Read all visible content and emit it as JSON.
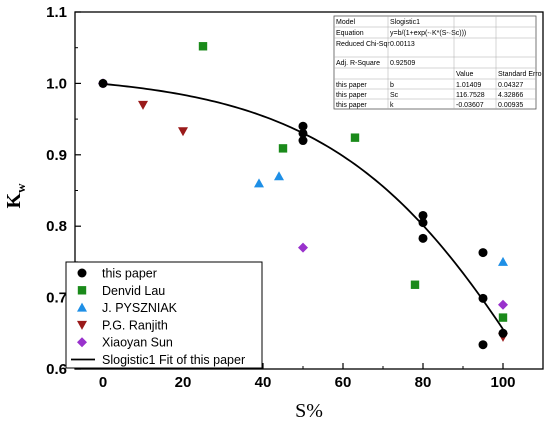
{
  "chart_data": {
    "type": "scatter",
    "xlabel": "S%",
    "ylabel_main": "K",
    "ylabel_sub": "w",
    "xlim": [
      -7,
      110
    ],
    "ylim": [
      0.6,
      1.1
    ],
    "x_ticks": [
      "0",
      "20",
      "40",
      "60",
      "80",
      "100"
    ],
    "y_ticks": [
      "0.6",
      "0.7",
      "0.8",
      "0.9",
      "1.0",
      "1.1"
    ],
    "series": [
      {
        "name": "this paper",
        "marker": "circle",
        "color": "#000000",
        "points": [
          [
            0,
            1.0
          ],
          [
            50,
            0.94
          ],
          [
            50,
            0.93
          ],
          [
            50,
            0.92
          ],
          [
            80,
            0.815
          ],
          [
            80,
            0.805
          ],
          [
            80,
            0.783
          ],
          [
            95,
            0.763
          ],
          [
            95,
            0.699
          ],
          [
            95,
            0.634
          ],
          [
            100,
            0.65
          ]
        ]
      },
      {
        "name": "Denvid Lau",
        "marker": "square",
        "color": "#1a8a1a",
        "points": [
          [
            25,
            1.052
          ],
          [
            45,
            0.909
          ],
          [
            63,
            0.924
          ],
          [
            78,
            0.718
          ],
          [
            100,
            0.672
          ]
        ]
      },
      {
        "name": "J. PYSZNIAK",
        "marker": "triangle-up",
        "color": "#1e8fe6",
        "points": [
          [
            39,
            0.86
          ],
          [
            44,
            0.87
          ],
          [
            100,
            0.75
          ]
        ]
      },
      {
        "name": "P.G. Ranjith",
        "marker": "triangle-down",
        "color": "#9a1a1a",
        "points": [
          [
            10,
            0.97
          ],
          [
            20,
            0.933
          ],
          [
            100,
            0.645
          ]
        ]
      },
      {
        "name": "Xiaoyan Sun",
        "marker": "diamond",
        "color": "#9932cc",
        "points": [
          [
            0,
            1.0
          ],
          [
            50,
            0.77
          ],
          [
            100,
            0.69
          ]
        ]
      }
    ],
    "fit": {
      "name": "Slogistic1 Fit of this paper",
      "color": "#000000",
      "b": 1.01409,
      "Sc": 116.7528,
      "k": -0.03607,
      "x_range": [
        0,
        100
      ]
    },
    "legend_position": "bottom-left"
  },
  "stats_table": {
    "rows": [
      [
        "Model",
        "Slogistic1",
        "",
        ""
      ],
      [
        "Equation",
        "y=b/(1+exp(-·K*(S-·Sc)))",
        "",
        ""
      ],
      [
        "Reduced Chi-Sqr",
        "0.00113",
        "",
        ""
      ],
      [
        "Adj. R-Square",
        "0.92509",
        "",
        ""
      ],
      [
        "",
        "",
        "Value",
        "Standard Erro"
      ],
      [
        "this paper",
        "b",
        "1.01409",
        "0.04327"
      ],
      [
        "this paper",
        "Sc",
        "116.7528",
        "4.32866"
      ],
      [
        "this paper",
        "k",
        "-0.03607",
        "0.00935"
      ]
    ]
  }
}
